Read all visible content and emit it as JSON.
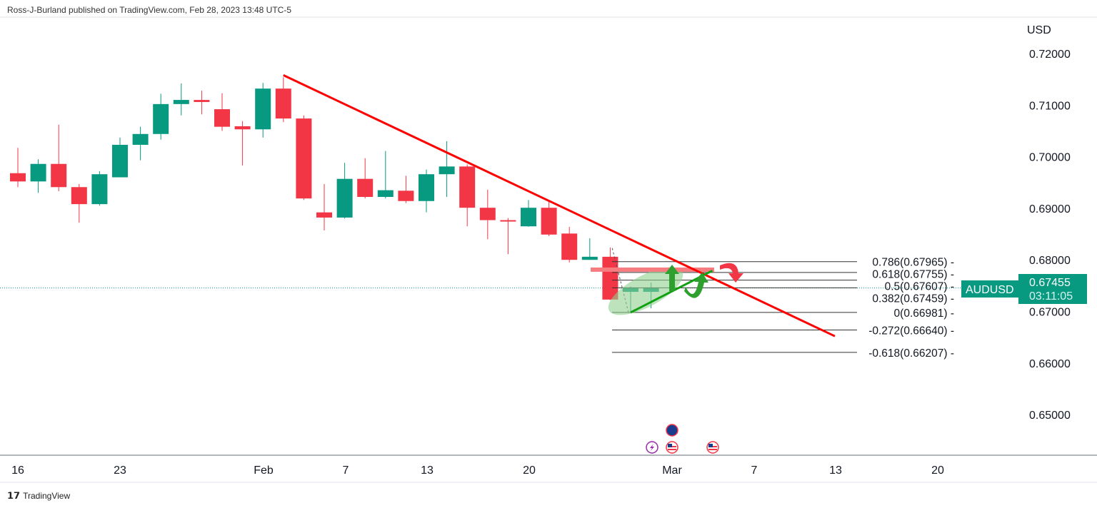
{
  "header": {
    "attribution": "Ross-J-Burland published on TradingView.com, Feb 28, 2023 13:48 UTC-5"
  },
  "footer": {
    "logo_text": "TradingView"
  },
  "colors": {
    "up": "#089981",
    "down": "#f23645",
    "trendline": "#ff0000",
    "support": "#22a33a",
    "band": "#f77c80"
  },
  "chart_data": {
    "type": "candlestick",
    "symbol": "AUDUSD",
    "currency": "USD",
    "last_price": "0.67455",
    "countdown": "03:11:05",
    "ylim": [
      0.644,
      0.724
    ],
    "y_ticks": [
      "0.72000",
      "0.71000",
      "0.70000",
      "0.69000",
      "0.68000",
      "0.67000",
      "0.66000",
      "0.65000"
    ],
    "x_ticks": [
      "16",
      "23",
      "Feb",
      "7",
      "13",
      "20",
      "Mar",
      "7",
      "13",
      "20"
    ],
    "candles": [
      {
        "d": "Jan 16",
        "o": 0.6968,
        "h": 0.7017,
        "l": 0.6941,
        "c": 0.6952
      },
      {
        "d": "Jan 17",
        "o": 0.6952,
        "h": 0.6995,
        "l": 0.693,
        "c": 0.6986
      },
      {
        "d": "Jan 18",
        "o": 0.6986,
        "h": 0.7062,
        "l": 0.6933,
        "c": 0.6941
      },
      {
        "d": "Jan 19",
        "o": 0.6941,
        "h": 0.6947,
        "l": 0.6872,
        "c": 0.6908
      },
      {
        "d": "Jan 20",
        "o": 0.6908,
        "h": 0.6972,
        "l": 0.6905,
        "c": 0.6966
      },
      {
        "d": "Jan 23",
        "o": 0.696,
        "h": 0.7037,
        "l": 0.696,
        "c": 0.7023
      },
      {
        "d": "Jan 24",
        "o": 0.7023,
        "h": 0.7058,
        "l": 0.6993,
        "c": 0.7044
      },
      {
        "d": "Jan 25",
        "o": 0.7044,
        "h": 0.7122,
        "l": 0.7033,
        "c": 0.7102
      },
      {
        "d": "Jan 26",
        "o": 0.7102,
        "h": 0.7142,
        "l": 0.708,
        "c": 0.711
      },
      {
        "d": "Jan 27",
        "o": 0.711,
        "h": 0.7128,
        "l": 0.7082,
        "c": 0.7106
      },
      {
        "d": "Jan 30",
        "o": 0.7092,
        "h": 0.7123,
        "l": 0.705,
        "c": 0.7058
      },
      {
        "d": "Jan 31",
        "o": 0.7059,
        "h": 0.7069,
        "l": 0.6983,
        "c": 0.7053
      },
      {
        "d": "Feb 1",
        "o": 0.7053,
        "h": 0.7143,
        "l": 0.7037,
        "c": 0.7132
      },
      {
        "d": "Feb 2",
        "o": 0.7132,
        "h": 0.7154,
        "l": 0.7067,
        "c": 0.7074
      },
      {
        "d": "Feb 3",
        "o": 0.7074,
        "h": 0.708,
        "l": 0.6916,
        "c": 0.6919
      },
      {
        "d": "Feb 6",
        "o": 0.6892,
        "h": 0.6947,
        "l": 0.6857,
        "c": 0.6882
      },
      {
        "d": "Feb 7",
        "o": 0.6882,
        "h": 0.6988,
        "l": 0.688,
        "c": 0.6957
      },
      {
        "d": "Feb 8",
        "o": 0.6957,
        "h": 0.6997,
        "l": 0.6919,
        "c": 0.6922
      },
      {
        "d": "Feb 9",
        "o": 0.6922,
        "h": 0.7011,
        "l": 0.6919,
        "c": 0.6935
      },
      {
        "d": "Feb 10",
        "o": 0.6934,
        "h": 0.6963,
        "l": 0.691,
        "c": 0.6914
      },
      {
        "d": "Feb 13",
        "o": 0.6914,
        "h": 0.6975,
        "l": 0.6892,
        "c": 0.6966
      },
      {
        "d": "Feb 14",
        "o": 0.6966,
        "h": 0.703,
        "l": 0.6922,
        "c": 0.6981
      },
      {
        "d": "Feb 15",
        "o": 0.6981,
        "h": 0.6985,
        "l": 0.6865,
        "c": 0.6901
      },
      {
        "d": "Feb 16",
        "o": 0.6901,
        "h": 0.6936,
        "l": 0.684,
        "c": 0.6877
      },
      {
        "d": "Feb 17",
        "o": 0.6877,
        "h": 0.6881,
        "l": 0.6811,
        "c": 0.6875
      },
      {
        "d": "Feb 20",
        "o": 0.6865,
        "h": 0.6916,
        "l": 0.6864,
        "c": 0.6901
      },
      {
        "d": "Feb 21",
        "o": 0.6901,
        "h": 0.6916,
        "l": 0.6846,
        "c": 0.6849
      },
      {
        "d": "Feb 22",
        "o": 0.6851,
        "h": 0.6864,
        "l": 0.6795,
        "c": 0.68
      },
      {
        "d": "Feb 23",
        "o": 0.68,
        "h": 0.6842,
        "l": 0.68,
        "c": 0.6806
      },
      {
        "d": "Feb 24",
        "o": 0.6806,
        "h": 0.6824,
        "l": 0.6722,
        "c": 0.6723
      },
      {
        "d": "Feb 27",
        "o": 0.6738,
        "h": 0.6748,
        "l": 0.6698,
        "c": 0.6746
      },
      {
        "d": "Feb 28",
        "o": 0.6738,
        "h": 0.6756,
        "l": 0.6706,
        "c": 0.67455
      }
    ],
    "fib_levels": [
      {
        "label": "0.786(0.67965)",
        "price": 0.67965
      },
      {
        "label": "0.618(0.67755)",
        "price": 0.67755
      },
      {
        "label": "0.5(0.67607)",
        "price": 0.67607
      },
      {
        "label": "0.382(0.67459)",
        "price": 0.67459
      },
      {
        "label": "0(0.66981)",
        "price": 0.66981
      },
      {
        "label": "-0.272(0.66640)",
        "price": 0.6664
      },
      {
        "label": "-0.618(0.66207)",
        "price": 0.66207
      }
    ],
    "trendline": {
      "from": {
        "d": "Feb 2",
        "price": 0.7158
      },
      "to": {
        "d": "Mar 13",
        "price": 0.6652
      }
    },
    "resistance_band": {
      "price": 0.6781
    },
    "support_line": {
      "from": {
        "d": "Feb 27",
        "price": 0.6698
      },
      "to": {
        "d": "Mar 3",
        "price": 0.6779
      }
    },
    "events": [
      {
        "d": "Feb 28",
        "type": "lightning-event"
      },
      {
        "d": "Mar 1",
        "type": "AU"
      },
      {
        "d": "Mar 1",
        "type": "US"
      },
      {
        "d": "Mar 3",
        "type": "US"
      }
    ]
  }
}
